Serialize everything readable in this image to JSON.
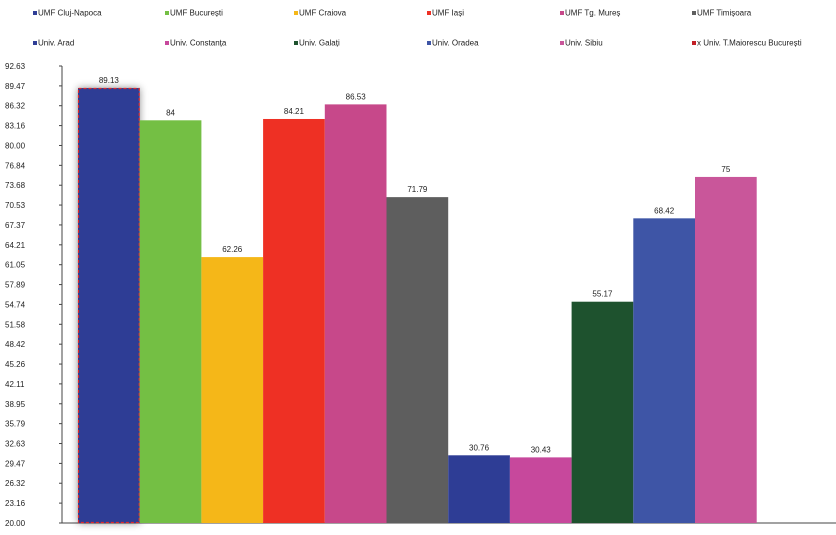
{
  "chart_data": {
    "type": "bar",
    "series": [
      {
        "name": "UMF Cluj-Napoca",
        "value": 89.13,
        "label": "89.13",
        "color": "#2E3D95",
        "highlighted": true
      },
      {
        "name": "UMF București",
        "value": 84,
        "label": "84",
        "color": "#74BF44"
      },
      {
        "name": "UMF Craiova",
        "value": 62.26,
        "label": "62.26",
        "color": "#F5B718"
      },
      {
        "name": "UMF Iași",
        "value": 84.21,
        "label": "84.21",
        "color": "#EE3024"
      },
      {
        "name": "UMF Tg. Mureș",
        "value": 86.53,
        "label": "86.53",
        "color": "#C7488A"
      },
      {
        "name": "UMF Timișoara",
        "value": 71.79,
        "label": "71.79",
        "color": "#5E5E5E"
      },
      {
        "name": "Univ. Arad",
        "value": 30.76,
        "label": "30.76",
        "color": "#2E3D95"
      },
      {
        "name": "Univ. Constanța",
        "value": 30.43,
        "label": "30.43",
        "color": "#C7489C"
      },
      {
        "name": "Univ. Galați",
        "value": 55.17,
        "label": "55.17",
        "color": "#1E522E"
      },
      {
        "name": "Univ. Oradea",
        "value": 68.42,
        "label": "68.42",
        "color": "#3E55A6"
      },
      {
        "name": "Univ. Sibiu",
        "value": 75,
        "label": "75",
        "color": "#C9569A"
      },
      {
        "name": "x Univ. T.Maiorescu București",
        "value": null,
        "label": "",
        "color": "#C21F26"
      }
    ],
    "y_ticks": [
      "92.63",
      "89.47",
      "86.32",
      "83.16",
      "80.00",
      "76.84",
      "73.68",
      "70.53",
      "67.37",
      "64.21",
      "61.05",
      "57.89",
      "54.74",
      "51.58",
      "48.42",
      "45.26",
      "42.11",
      "38.95",
      "35.79",
      "32.63",
      "29.47",
      "26.32",
      "23.16",
      "20.00"
    ],
    "ylim": [
      20.0,
      92.63
    ],
    "grid": false,
    "legend_position": "top"
  }
}
